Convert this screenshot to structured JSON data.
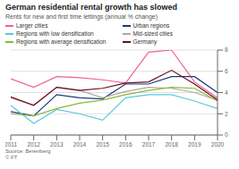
{
  "chart_data": {
    "type": "line",
    "title": "German residential rental growth has slowed",
    "subtitle": "Rents for new and first time lettings (annual % change)",
    "source": "Source: Berenberg\n© FT",
    "x": [
      2011,
      2012,
      2013,
      2014,
      2015,
      2016,
      2017,
      2018,
      2019,
      2020
    ],
    "series": [
      {
        "name": "Larger cities",
        "color": "#f06292",
        "values": [
          5.3,
          4.5,
          5.5,
          5.4,
          5.2,
          4.9,
          7.8,
          8.0,
          5.0,
          3.5
        ]
      },
      {
        "name": "Urban regions",
        "color": "#1a3a7a",
        "values": [
          2.2,
          1.8,
          3.8,
          3.5,
          3.4,
          4.8,
          4.8,
          5.5,
          5.5,
          4.0
        ]
      },
      {
        "name": "Regions with low densification",
        "color": "#5bc8dc",
        "values": [
          2.8,
          1.1,
          2.4,
          2.0,
          1.4,
          3.5,
          3.8,
          3.8,
          3.2,
          2.5
        ]
      },
      {
        "name": "Mid-sized cities",
        "color": "#b0a8a0",
        "values": [
          3.5,
          2.8,
          4.5,
          4.2,
          3.5,
          4.1,
          4.5,
          4.4,
          4.0,
          3.3
        ]
      },
      {
        "name": "Regions with average densification",
        "color": "#8ab83a",
        "values": [
          2.0,
          1.8,
          2.5,
          3.0,
          3.3,
          3.8,
          4.2,
          4.5,
          4.4,
          3.2
        ]
      },
      {
        "name": "Germany",
        "color": "#6b0a1e",
        "values": [
          3.6,
          2.8,
          4.5,
          4.2,
          4.4,
          4.9,
          5.0,
          6.1,
          4.8,
          3.3
        ]
      }
    ],
    "xlim": [
      2011,
      2020
    ],
    "xticks": [
      2011,
      2012,
      2013,
      2014,
      2015,
      2016,
      2017,
      2018,
      2019,
      2020
    ],
    "ylim": [
      0,
      8
    ],
    "yticks": [
      0,
      2,
      4,
      6,
      8
    ],
    "grid": true,
    "legend": "top"
  }
}
